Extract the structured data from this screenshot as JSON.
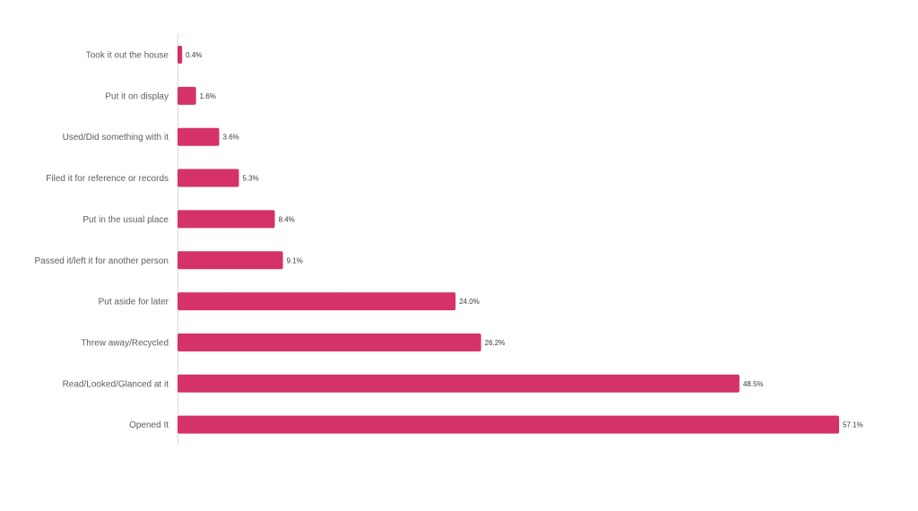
{
  "chart_data": {
    "type": "bar",
    "orientation": "horizontal",
    "title": "",
    "xlabel": "",
    "ylabel": "",
    "categories": [
      "Took it out the house",
      "Put it on display",
      "Used/Did something with it",
      "Filed it for reference or records",
      "Put in the usual place",
      "Passed it/left it for another person",
      "Put aside for later",
      "Threw away/Recycled",
      "Read/Looked/Glanced at it",
      "Opened It"
    ],
    "values": [
      0.4,
      1.6,
      3.6,
      5.3,
      8.4,
      9.1,
      24.0,
      26.2,
      48.5,
      57.1
    ],
    "value_labels": [
      "0.4%",
      "1.6%",
      "3.6%",
      "5.3%",
      "8.4%",
      "9.1%",
      "24.0%",
      "26.2%",
      "48.5%",
      "57.1%"
    ],
    "unit": "%",
    "xlim": [
      0,
      57.1
    ],
    "grid": false,
    "legend": "none",
    "colors": {
      "bar": "#d5326a",
      "axis": "#d8d8d8",
      "category_text": "#5e5e5e",
      "value_text": "#3a3a3a"
    }
  }
}
